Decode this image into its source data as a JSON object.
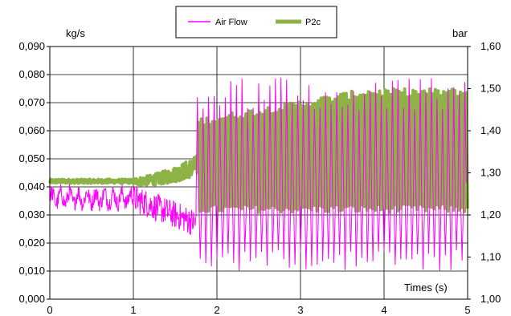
{
  "chart_data": {
    "type": "line",
    "title": "",
    "xlabel": "Times (s)",
    "ylabel_left": "kg/s",
    "ylabel_right": "bar",
    "xlim": [
      0,
      5
    ],
    "ylim_left": [
      0.0,
      0.09
    ],
    "ylim_right": [
      1.0,
      1.6
    ],
    "x_ticks": [
      "0",
      "1",
      "2",
      "3",
      "4",
      "5"
    ],
    "y_left_ticks": [
      "0,000",
      "0,010",
      "0,020",
      "0,030",
      "0,040",
      "0,050",
      "0,060",
      "0,070",
      "0,080",
      "0,090"
    ],
    "y_right_ticks": [
      "1,00",
      "1,10",
      "1,20",
      "1,30",
      "1,40",
      "1,50",
      "1,60"
    ],
    "grid": true,
    "legend_position": "top-center",
    "series": [
      {
        "name": "Air Flow",
        "axis": "left",
        "color": "#ff00ff",
        "pattern": [
          {
            "t0": 0.0,
            "t1": 1.0,
            "center": 0.036,
            "amplitude": 0.004,
            "noise": 0.003
          },
          {
            "t0": 1.0,
            "t1": 1.75,
            "center_start": 0.036,
            "center_end": 0.027,
            "amplitude": 0.003,
            "noise": 0.002
          },
          {
            "t0": 1.75,
            "t1": 5.0,
            "min": 0.01,
            "max": 0.079,
            "cycles_per_s": 15
          }
        ]
      },
      {
        "name": "P2c",
        "axis": "right",
        "color": "#8db347",
        "pattern": [
          {
            "t0": 0.0,
            "t1": 1.0,
            "center": 1.28,
            "amplitude": 0.005
          },
          {
            "t0": 1.0,
            "t1": 1.78,
            "center_start": 1.28,
            "center_end": 1.32,
            "amplitude": 0.008
          },
          {
            "t0": 1.78,
            "t1": 5.0,
            "min": 1.21,
            "max_start": 1.42,
            "max_end": 1.49,
            "cycles_per_s": 15
          }
        ]
      }
    ]
  }
}
